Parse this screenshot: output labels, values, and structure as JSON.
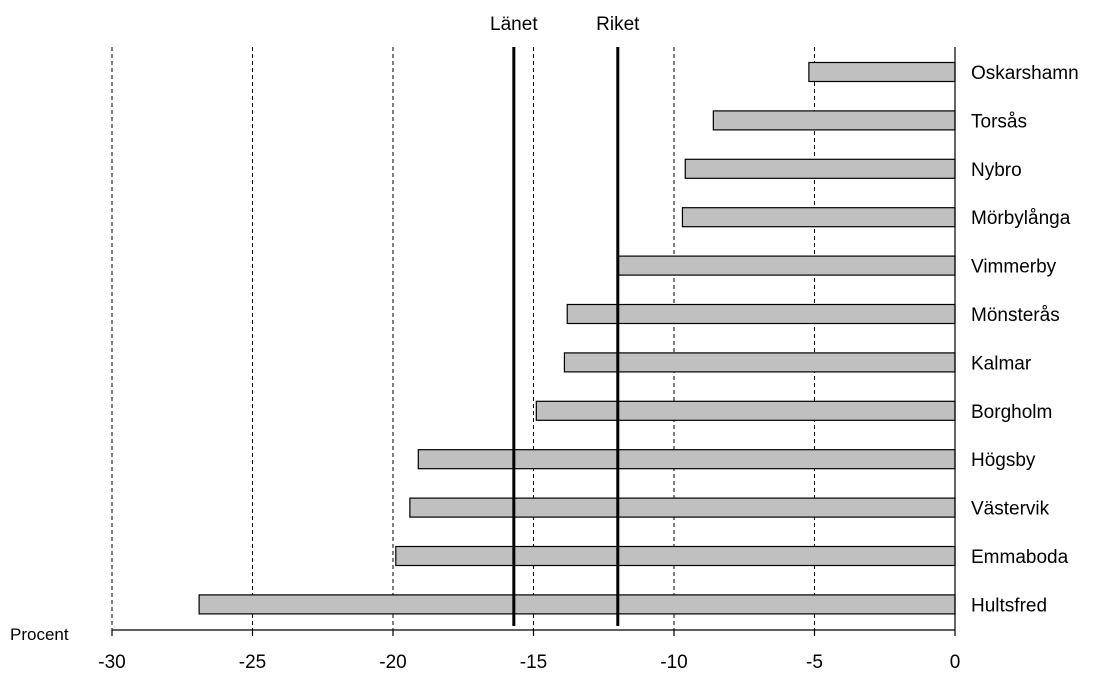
{
  "chart_data": {
    "type": "bar",
    "orientation": "horizontal",
    "categories": [
      "Oskarshamn",
      "Torsås",
      "Nybro",
      "Mörbylånga",
      "Vimmerby",
      "Mönsterås",
      "Kalmar",
      "Borgholm",
      "Högsby",
      "Västervik",
      "Emmaboda",
      "Hultsfred"
    ],
    "values": [
      -5.2,
      -8.6,
      -9.6,
      -9.7,
      -12.0,
      -13.8,
      -13.9,
      -14.9,
      -19.1,
      -19.4,
      -19.9,
      -26.9
    ],
    "xlabel": "Procent",
    "xlim": [
      -30,
      0
    ],
    "xticks": [
      "-30",
      "-25",
      "-20",
      "-15",
      "-10",
      "-5",
      "0"
    ],
    "grid": "vertical dashed",
    "bar_color": "#c0c0c0",
    "reference_lines": [
      {
        "label": "Länet",
        "value": -15.7
      },
      {
        "label": "Riket",
        "value": -12.0
      }
    ]
  }
}
